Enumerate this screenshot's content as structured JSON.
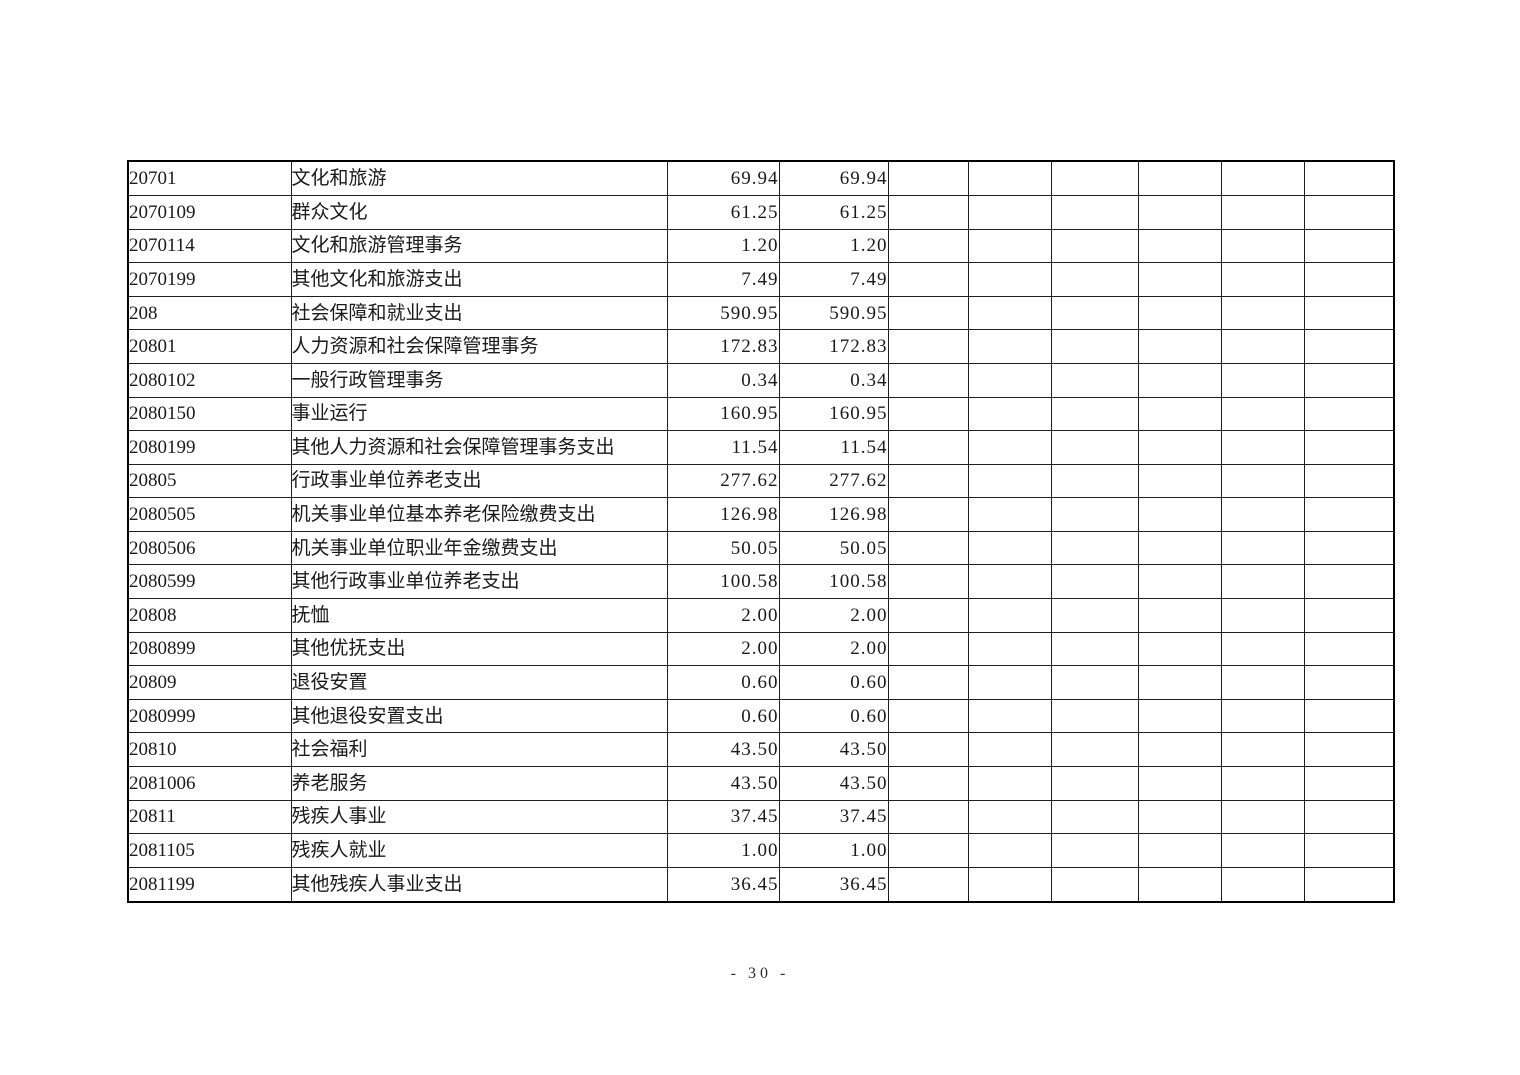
{
  "page": {
    "footer_page_number": "- 30 -"
  },
  "table": {
    "empty_column_count": 6,
    "rows": [
      {
        "code": "20701",
        "name": "文化和旅游",
        "amount1": "69.94",
        "amount2": "69.94"
      },
      {
        "code": "2070109",
        "name": "群众文化",
        "amount1": "61.25",
        "amount2": "61.25"
      },
      {
        "code": "2070114",
        "name": "文化和旅游管理事务",
        "amount1": "1.20",
        "amount2": "1.20"
      },
      {
        "code": "2070199",
        "name": "其他文化和旅游支出",
        "amount1": "7.49",
        "amount2": "7.49"
      },
      {
        "code": "208",
        "name": "社会保障和就业支出",
        "amount1": "590.95",
        "amount2": "590.95"
      },
      {
        "code": "20801",
        "name": "人力资源和社会保障管理事务",
        "amount1": "172.83",
        "amount2": "172.83"
      },
      {
        "code": "2080102",
        "name": "一般行政管理事务",
        "amount1": "0.34",
        "amount2": "0.34"
      },
      {
        "code": "2080150",
        "name": "事业运行",
        "amount1": "160.95",
        "amount2": "160.95"
      },
      {
        "code": "2080199",
        "name": "其他人力资源和社会保障管理事务支出",
        "amount1": "11.54",
        "amount2": "11.54"
      },
      {
        "code": "20805",
        "name": "行政事业单位养老支出",
        "amount1": "277.62",
        "amount2": "277.62"
      },
      {
        "code": "2080505",
        "name": "机关事业单位基本养老保险缴费支出",
        "amount1": "126.98",
        "amount2": "126.98"
      },
      {
        "code": "2080506",
        "name": "机关事业单位职业年金缴费支出",
        "amount1": "50.05",
        "amount2": "50.05"
      },
      {
        "code": "2080599",
        "name": "其他行政事业单位养老支出",
        "amount1": "100.58",
        "amount2": "100.58"
      },
      {
        "code": "20808",
        "name": "抚恤",
        "amount1": "2.00",
        "amount2": "2.00"
      },
      {
        "code": "2080899",
        "name": "其他优抚支出",
        "amount1": "2.00",
        "amount2": "2.00"
      },
      {
        "code": "20809",
        "name": "退役安置",
        "amount1": "0.60",
        "amount2": "0.60"
      },
      {
        "code": "2080999",
        "name": "其他退役安置支出",
        "amount1": "0.60",
        "amount2": "0.60"
      },
      {
        "code": "20810",
        "name": "社会福利",
        "amount1": "43.50",
        "amount2": "43.50"
      },
      {
        "code": "2081006",
        "name": "养老服务",
        "amount1": "43.50",
        "amount2": "43.50"
      },
      {
        "code": "20811",
        "name": "残疾人事业",
        "amount1": "37.45",
        "amount2": "37.45"
      },
      {
        "code": "2081105",
        "name": "残疾人就业",
        "amount1": "1.00",
        "amount2": "1.00"
      },
      {
        "code": "2081199",
        "name": "其他残疾人事业支出",
        "amount1": "36.45",
        "amount2": "36.45"
      }
    ]
  }
}
